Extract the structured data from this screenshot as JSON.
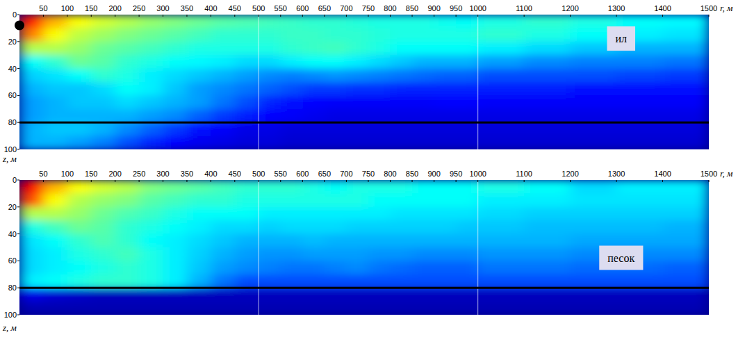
{
  "chart_data": [
    {
      "type": "heatmap",
      "xlabel": "r, м",
      "ylabel": "z, м",
      "xlim": [
        0,
        1500
      ],
      "x_segments": [
        [
          0,
          500
        ],
        [
          500,
          1000
        ],
        [
          1000,
          1500
        ]
      ],
      "xticks": [
        50,
        100,
        150,
        200,
        250,
        300,
        350,
        400,
        450,
        500,
        550,
        600,
        650,
        700,
        750,
        800,
        850,
        900,
        950,
        1000,
        1100,
        1200,
        1300,
        1400,
        1500
      ],
      "ylim": [
        0,
        100
      ],
      "yticks": [
        0,
        20,
        40,
        60,
        80,
        100
      ],
      "r_edges": [
        0,
        50,
        100,
        150,
        200,
        250,
        300,
        350,
        400,
        450,
        500,
        550,
        600,
        650,
        700,
        750,
        800,
        850,
        900,
        950,
        1000,
        1100,
        1200,
        1300,
        1400,
        1500
      ],
      "z_edges": [
        0,
        10,
        20,
        30,
        40,
        50,
        60,
        70,
        80,
        90,
        100
      ],
      "color_range": [
        0,
        1
      ],
      "cells": [
        [
          0.85,
          0.7,
          0.62,
          0.58,
          0.55,
          0.52,
          0.5,
          0.48,
          0.46,
          0.45,
          0.44,
          0.43,
          0.42,
          0.42,
          0.41,
          0.4,
          0.4,
          0.4,
          0.39,
          0.38,
          0.4,
          0.42,
          0.4,
          0.38,
          0.37
        ],
        [
          0.75,
          0.62,
          0.56,
          0.53,
          0.5,
          0.48,
          0.46,
          0.44,
          0.42,
          0.42,
          0.42,
          0.43,
          0.43,
          0.42,
          0.42,
          0.41,
          0.4,
          0.4,
          0.4,
          0.4,
          0.42,
          0.4,
          0.38,
          0.36,
          0.35
        ],
        [
          0.55,
          0.55,
          0.52,
          0.48,
          0.46,
          0.44,
          0.42,
          0.4,
          0.4,
          0.4,
          0.4,
          0.42,
          0.43,
          0.44,
          0.42,
          0.4,
          0.38,
          0.38,
          0.38,
          0.38,
          0.36,
          0.34,
          0.32,
          0.3,
          0.3
        ],
        [
          0.38,
          0.42,
          0.48,
          0.46,
          0.42,
          0.4,
          0.38,
          0.37,
          0.36,
          0.34,
          0.34,
          0.36,
          0.38,
          0.38,
          0.36,
          0.34,
          0.32,
          0.3,
          0.3,
          0.3,
          0.28,
          0.26,
          0.25,
          0.25,
          0.24
        ],
        [
          0.33,
          0.35,
          0.38,
          0.42,
          0.4,
          0.36,
          0.34,
          0.32,
          0.3,
          0.28,
          0.26,
          0.25,
          0.26,
          0.27,
          0.26,
          0.25,
          0.24,
          0.23,
          0.22,
          0.22,
          0.2,
          0.2,
          0.2,
          0.19,
          0.18
        ],
        [
          0.3,
          0.32,
          0.32,
          0.34,
          0.38,
          0.36,
          0.32,
          0.28,
          0.26,
          0.24,
          0.22,
          0.2,
          0.18,
          0.18,
          0.17,
          0.17,
          0.16,
          0.16,
          0.16,
          0.16,
          0.15,
          0.15,
          0.14,
          0.14,
          0.14
        ],
        [
          0.28,
          0.3,
          0.32,
          0.32,
          0.34,
          0.32,
          0.3,
          0.28,
          0.24,
          0.2,
          0.16,
          0.14,
          0.13,
          0.12,
          0.12,
          0.12,
          0.12,
          0.12,
          0.13,
          0.13,
          0.12,
          0.12,
          0.12,
          0.12,
          0.12
        ],
        [
          0.28,
          0.3,
          0.3,
          0.3,
          0.3,
          0.28,
          0.26,
          0.22,
          0.18,
          0.15,
          0.13,
          0.12,
          0.11,
          0.1,
          0.1,
          0.1,
          0.1,
          0.1,
          0.1,
          0.1,
          0.1,
          0.1,
          0.1,
          0.1,
          0.1
        ],
        [
          0.3,
          0.32,
          0.32,
          0.3,
          0.26,
          0.22,
          0.18,
          0.14,
          0.12,
          0.1,
          0.1,
          0.09,
          0.09,
          0.09,
          0.09,
          0.09,
          0.09,
          0.09,
          0.09,
          0.09,
          0.09,
          0.09,
          0.09,
          0.09,
          0.09
        ],
        [
          0.3,
          0.3,
          0.28,
          0.25,
          0.2,
          0.16,
          0.13,
          0.11,
          0.1,
          0.09,
          0.09,
          0.08,
          0.08,
          0.08,
          0.08,
          0.08,
          0.08,
          0.08,
          0.08,
          0.08,
          0.08,
          0.08,
          0.08,
          0.08,
          0.08
        ]
      ],
      "bottom_depth": 80,
      "annotations": [
        {
          "text": "ил",
          "x": 1310,
          "y": 18
        }
      ],
      "source": {
        "x": 0,
        "y": 8
      }
    },
    {
      "type": "heatmap",
      "xlabel": "r, м",
      "ylabel": "z, м",
      "xlim": [
        0,
        1500
      ],
      "x_segments": [
        [
          0,
          500
        ],
        [
          500,
          1000
        ],
        [
          1000,
          1500
        ]
      ],
      "xticks": [
        50,
        100,
        150,
        200,
        250,
        300,
        350,
        400,
        450,
        500,
        550,
        600,
        650,
        700,
        750,
        800,
        850,
        900,
        950,
        1000,
        1100,
        1200,
        1300,
        1400,
        1500
      ],
      "ylim": [
        0,
        100
      ],
      "yticks": [
        0,
        20,
        40,
        60,
        80,
        100
      ],
      "r_edges": [
        0,
        50,
        100,
        150,
        200,
        250,
        300,
        350,
        400,
        450,
        500,
        550,
        600,
        650,
        700,
        750,
        800,
        850,
        900,
        950,
        1000,
        1100,
        1200,
        1300,
        1400,
        1500
      ],
      "z_edges": [
        0,
        10,
        20,
        30,
        40,
        50,
        60,
        70,
        80,
        90,
        100
      ],
      "color_range": [
        0,
        1
      ],
      "cells": [
        [
          0.88,
          0.7,
          0.62,
          0.58,
          0.55,
          0.5,
          0.48,
          0.46,
          0.44,
          0.42,
          0.42,
          0.42,
          0.4,
          0.38,
          0.4,
          0.4,
          0.4,
          0.38,
          0.38,
          0.38,
          0.4,
          0.38,
          0.34,
          0.36,
          0.36
        ],
        [
          0.8,
          0.62,
          0.55,
          0.52,
          0.5,
          0.46,
          0.44,
          0.42,
          0.42,
          0.4,
          0.4,
          0.4,
          0.4,
          0.4,
          0.4,
          0.38,
          0.38,
          0.38,
          0.38,
          0.38,
          0.36,
          0.36,
          0.35,
          0.35,
          0.35
        ],
        [
          0.55,
          0.55,
          0.52,
          0.48,
          0.45,
          0.43,
          0.4,
          0.38,
          0.38,
          0.38,
          0.36,
          0.36,
          0.36,
          0.36,
          0.36,
          0.36,
          0.35,
          0.35,
          0.35,
          0.35,
          0.34,
          0.33,
          0.33,
          0.33,
          0.33
        ],
        [
          0.4,
          0.44,
          0.48,
          0.46,
          0.42,
          0.4,
          0.38,
          0.36,
          0.34,
          0.34,
          0.33,
          0.34,
          0.34,
          0.34,
          0.33,
          0.33,
          0.33,
          0.33,
          0.33,
          0.32,
          0.32,
          0.31,
          0.31,
          0.31,
          0.3
        ],
        [
          0.35,
          0.38,
          0.42,
          0.45,
          0.42,
          0.38,
          0.36,
          0.34,
          0.32,
          0.3,
          0.3,
          0.3,
          0.31,
          0.3,
          0.3,
          0.3,
          0.3,
          0.3,
          0.3,
          0.3,
          0.3,
          0.3,
          0.29,
          0.29,
          0.29
        ],
        [
          0.34,
          0.36,
          0.4,
          0.42,
          0.44,
          0.4,
          0.36,
          0.33,
          0.3,
          0.28,
          0.27,
          0.27,
          0.28,
          0.28,
          0.28,
          0.27,
          0.27,
          0.26,
          0.26,
          0.26,
          0.27,
          0.27,
          0.26,
          0.26,
          0.26
        ],
        [
          0.34,
          0.36,
          0.38,
          0.4,
          0.42,
          0.4,
          0.36,
          0.32,
          0.28,
          0.26,
          0.25,
          0.24,
          0.24,
          0.25,
          0.26,
          0.24,
          0.23,
          0.22,
          0.22,
          0.22,
          0.24,
          0.24,
          0.23,
          0.23,
          0.22
        ],
        [
          0.36,
          0.38,
          0.4,
          0.42,
          0.42,
          0.4,
          0.36,
          0.3,
          0.24,
          0.2,
          0.2,
          0.2,
          0.2,
          0.2,
          0.2,
          0.2,
          0.2,
          0.2,
          0.2,
          0.2,
          0.2,
          0.2,
          0.2,
          0.2,
          0.2
        ],
        [
          0.1,
          0.08,
          0.07,
          0.06,
          0.06,
          0.06,
          0.06,
          0.06,
          0.06,
          0.06,
          0.06,
          0.06,
          0.06,
          0.06,
          0.06,
          0.06,
          0.06,
          0.06,
          0.06,
          0.06,
          0.06,
          0.06,
          0.06,
          0.06,
          0.06
        ],
        [
          0.05,
          0.05,
          0.05,
          0.05,
          0.05,
          0.05,
          0.05,
          0.05,
          0.05,
          0.05,
          0.05,
          0.05,
          0.05,
          0.05,
          0.05,
          0.05,
          0.05,
          0.05,
          0.05,
          0.05,
          0.05,
          0.05,
          0.05,
          0.05,
          0.05
        ]
      ],
      "bottom_depth": 80,
      "annotations": [
        {
          "text": "песок",
          "x": 1310,
          "y": 58
        }
      ]
    }
  ]
}
